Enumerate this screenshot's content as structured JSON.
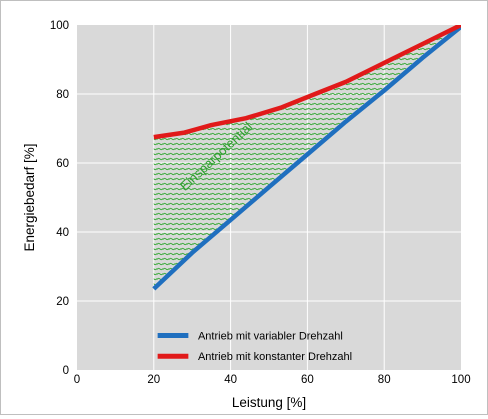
{
  "chart_data": {
    "type": "line",
    "xlabel": "Leistung [%]",
    "ylabel": "Energiebedarf [%]",
    "xlim": [
      0,
      100
    ],
    "ylim": [
      0,
      100
    ],
    "xticks": [
      "0",
      "20",
      "40",
      "60",
      "80",
      "100"
    ],
    "yticks": [
      "0",
      "20",
      "40",
      "60",
      "80",
      "100"
    ],
    "grid": true,
    "legend_position": "bottom-center",
    "annotation": "Einsparpotential",
    "series": [
      {
        "name": "Antrieb mit variabler Drehzahl",
        "color": "#1f6fbf",
        "x": [
          20,
          30,
          40,
          50,
          60,
          70,
          80,
          90,
          100
        ],
        "y": [
          23.5,
          34,
          43.5,
          53,
          62.5,
          72,
          81,
          90.5,
          99.5
        ]
      },
      {
        "name": "Antrieb mit konstanter Drehzahl",
        "color": "#e11a1a",
        "x": [
          20,
          28,
          35,
          44,
          53,
          62,
          70,
          80,
          90,
          100
        ],
        "y": [
          67.5,
          68.8,
          71,
          73,
          76,
          80,
          83.5,
          89,
          94.5,
          100
        ]
      }
    ],
    "fill_color": "#3aaa3a",
    "plot_bg": "#d9d9d9"
  }
}
